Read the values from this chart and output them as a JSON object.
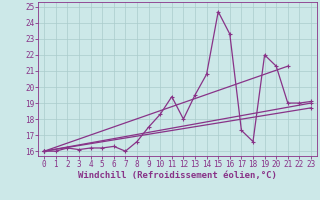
{
  "xlabel": "Windchill (Refroidissement éolien,°C)",
  "bg_color": "#cce8e8",
  "line_color": "#883388",
  "grid_color": "#aacccc",
  "xlim": [
    -0.5,
    23.5
  ],
  "ylim": [
    15.7,
    25.3
  ],
  "xticks": [
    0,
    1,
    2,
    3,
    4,
    5,
    6,
    7,
    8,
    9,
    10,
    11,
    12,
    13,
    14,
    15,
    16,
    17,
    18,
    19,
    20,
    21,
    22,
    23
  ],
  "yticks": [
    16,
    17,
    18,
    19,
    20,
    21,
    22,
    23,
    24,
    25
  ],
  "series1_x": [
    0,
    1,
    2,
    3,
    4,
    5,
    6,
    7,
    8,
    9,
    10,
    11,
    12,
    13,
    14,
    15,
    16,
    17,
    18,
    19,
    20,
    21,
    22,
    23
  ],
  "series1_y": [
    16.0,
    16.0,
    16.2,
    16.1,
    16.2,
    16.2,
    16.3,
    16.0,
    16.6,
    17.5,
    18.3,
    19.4,
    18.0,
    19.5,
    20.8,
    24.7,
    23.3,
    17.3,
    16.6,
    22.0,
    21.3,
    19.0,
    19.0,
    19.1
  ],
  "series2_x": [
    0,
    21
  ],
  "series2_y": [
    16.0,
    21.3
  ],
  "series3_x": [
    0,
    23
  ],
  "series3_y": [
    16.0,
    19.0
  ],
  "series4_x": [
    0,
    23
  ],
  "series4_y": [
    16.0,
    18.7
  ],
  "marker": "P",
  "markersize": 2.5,
  "linewidth": 0.9,
  "tick_fontsize": 5.5,
  "xlabel_fontsize": 6.5
}
